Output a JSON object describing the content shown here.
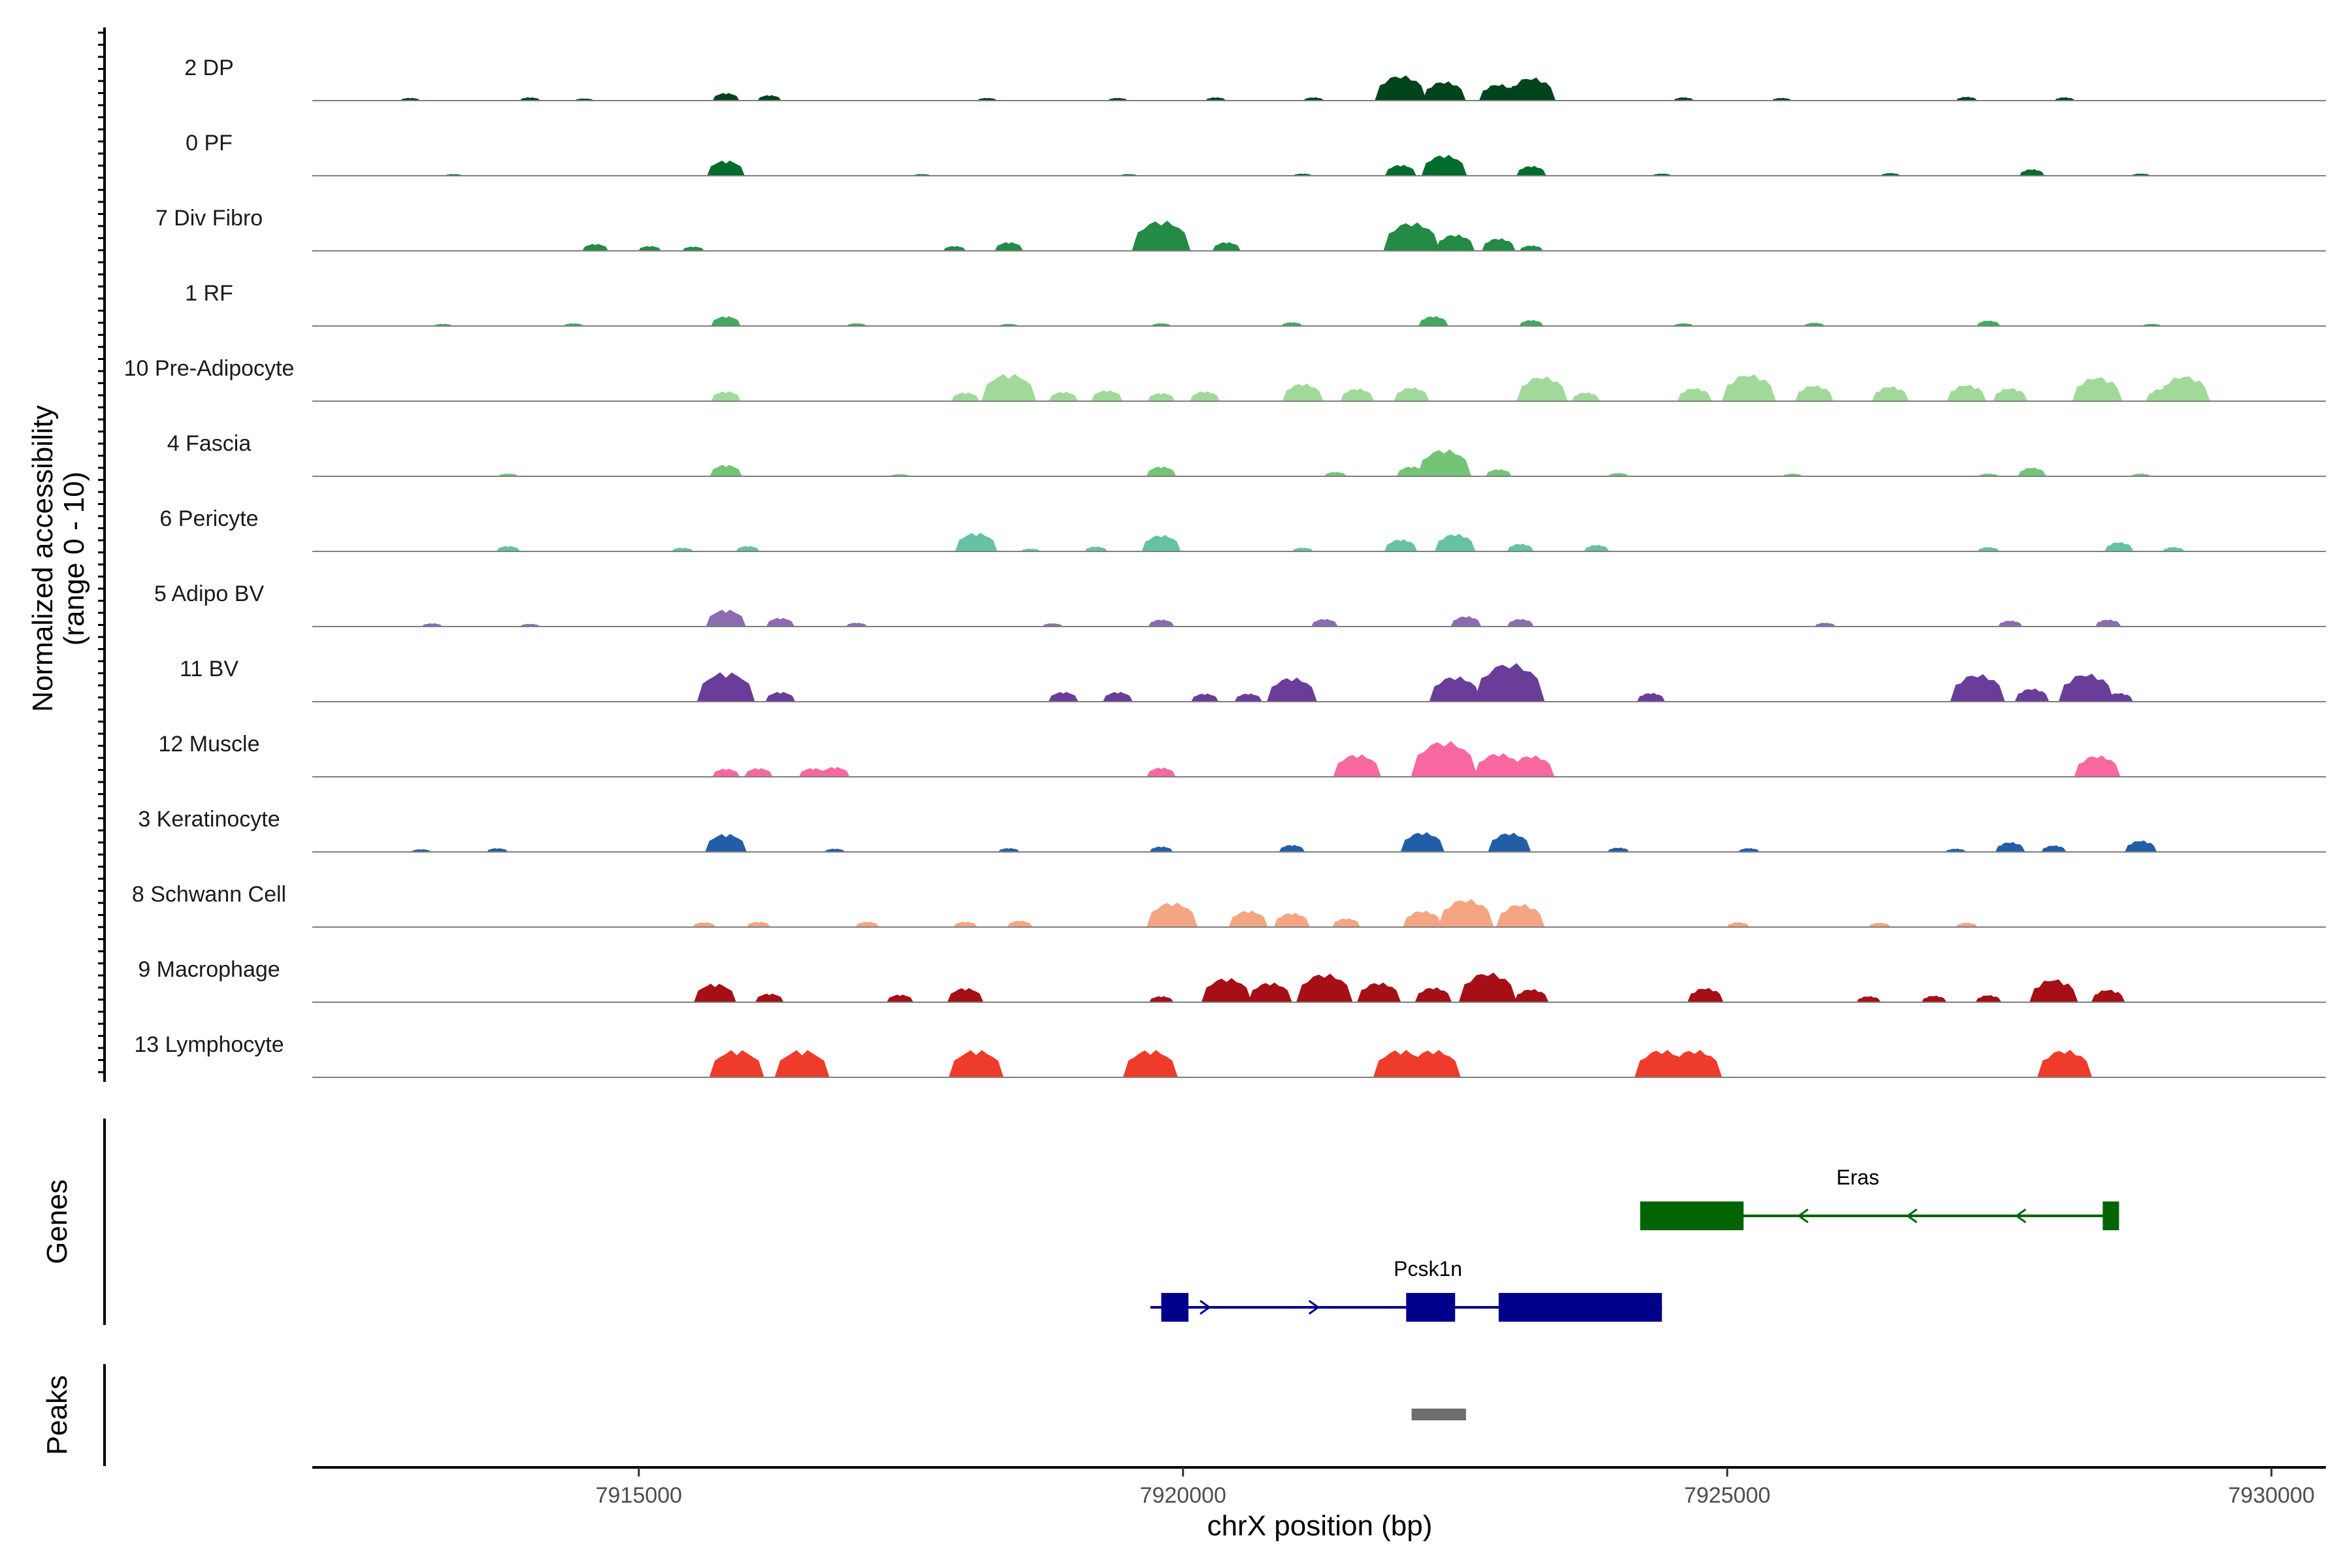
{
  "chart_data": {
    "type": "area",
    "title": "",
    "xlabel": "chrX position (bp)",
    "ylabel_line1": "Normalized accessibility",
    "ylabel_line2": "(range 0 - 10)",
    "y_range": [
      0,
      10
    ],
    "xlim": [
      7912000,
      7930500
    ],
    "x_ticks": [
      7915000,
      7920000,
      7925000,
      7930000
    ],
    "x_tick_labels": [
      "7915000",
      "7920000",
      "7925000",
      "7930000"
    ],
    "tracks": [
      {
        "name": "2 DP",
        "color": "#00441b",
        "peaks": [
          [
            7912900,
            0.5
          ],
          [
            7914000,
            0.6
          ],
          [
            7914500,
            0.4
          ],
          [
            7915800,
            1.4
          ],
          [
            7916200,
            1.0
          ],
          [
            7918200,
            0.5
          ],
          [
            7919400,
            0.5
          ],
          [
            7920300,
            0.6
          ],
          [
            7921200,
            0.6
          ],
          [
            7922000,
            4.6
          ],
          [
            7922400,
            3.5
          ],
          [
            7922900,
            3.0
          ],
          [
            7923200,
            4.2
          ],
          [
            7924600,
            0.6
          ],
          [
            7925500,
            0.5
          ],
          [
            7927200,
            0.7
          ],
          [
            7928100,
            0.6
          ]
        ]
      },
      {
        "name": "0 PF",
        "color": "#006d2c",
        "peaks": [
          [
            7913300,
            0.3
          ],
          [
            7915800,
            2.8
          ],
          [
            7917600,
            0.3
          ],
          [
            7919500,
            0.3
          ],
          [
            7921100,
            0.4
          ],
          [
            7922000,
            2.0
          ],
          [
            7922400,
            3.8
          ],
          [
            7923200,
            1.8
          ],
          [
            7924400,
            0.4
          ],
          [
            7926500,
            0.5
          ],
          [
            7927800,
            1.2
          ],
          [
            7928800,
            0.4
          ]
        ]
      },
      {
        "name": "7 Div Fibro",
        "color": "#238b45",
        "peaks": [
          [
            7914600,
            1.3
          ],
          [
            7915100,
            0.9
          ],
          [
            7915500,
            0.8
          ],
          [
            7917900,
            0.9
          ],
          [
            7918400,
            1.6
          ],
          [
            7919800,
            5.5
          ],
          [
            7920400,
            1.6
          ],
          [
            7922100,
            5.2
          ],
          [
            7922500,
            3.0
          ],
          [
            7922900,
            2.3
          ],
          [
            7923200,
            1.0
          ]
        ]
      },
      {
        "name": "1 RF",
        "color": "#41ab5d",
        "peaks": [
          [
            7913200,
            0.4
          ],
          [
            7914400,
            0.5
          ],
          [
            7915800,
            1.8
          ],
          [
            7917000,
            0.5
          ],
          [
            7918400,
            0.4
          ],
          [
            7919800,
            0.5
          ],
          [
            7921000,
            0.7
          ],
          [
            7922300,
            1.8
          ],
          [
            7923200,
            1.1
          ],
          [
            7924600,
            0.5
          ],
          [
            7925800,
            0.6
          ],
          [
            7927400,
            1.0
          ],
          [
            7928900,
            0.4
          ]
        ]
      },
      {
        "name": "10 Pre-Adipocyte",
        "color": "#a1d99b",
        "peaks": [
          [
            7915800,
            1.8
          ],
          [
            7918000,
            1.6
          ],
          [
            7918400,
            5.0
          ],
          [
            7918900,
            1.7
          ],
          [
            7919300,
            2.0
          ],
          [
            7919800,
            1.5
          ],
          [
            7920200,
            1.8
          ],
          [
            7921100,
            3.2
          ],
          [
            7921600,
            2.3
          ],
          [
            7922100,
            2.5
          ],
          [
            7923300,
            4.5
          ],
          [
            7923700,
            1.6
          ],
          [
            7924700,
            2.4
          ],
          [
            7925200,
            4.9
          ],
          [
            7925800,
            2.9
          ],
          [
            7926500,
            2.7
          ],
          [
            7927200,
            3.0
          ],
          [
            7927600,
            2.4
          ],
          [
            7928400,
            4.4
          ],
          [
            7929000,
            2.3
          ],
          [
            7929200,
            4.6
          ]
        ]
      },
      {
        "name": "4 Fascia",
        "color": "#74c476",
        "peaks": [
          [
            7913800,
            0.5
          ],
          [
            7915800,
            2.1
          ],
          [
            7917400,
            0.4
          ],
          [
            7919800,
            1.8
          ],
          [
            7921400,
            0.8
          ],
          [
            7922100,
            1.8
          ],
          [
            7922400,
            4.9
          ],
          [
            7922900,
            1.3
          ],
          [
            7924000,
            0.6
          ],
          [
            7925600,
            0.5
          ],
          [
            7927400,
            0.5
          ],
          [
            7927800,
            1.6
          ],
          [
            7928800,
            0.5
          ]
        ]
      },
      {
        "name": "6 Pericyte",
        "color": "#66c2a4",
        "peaks": [
          [
            7913800,
            1.0
          ],
          [
            7915400,
            0.7
          ],
          [
            7916000,
            1.0
          ],
          [
            7918100,
            3.4
          ],
          [
            7918600,
            0.5
          ],
          [
            7919200,
            0.9
          ],
          [
            7919800,
            3.0
          ],
          [
            7921100,
            0.7
          ],
          [
            7922000,
            2.2
          ],
          [
            7922500,
            3.2
          ],
          [
            7923100,
            1.4
          ],
          [
            7923800,
            1.2
          ],
          [
            7927400,
            0.8
          ],
          [
            7928600,
            1.7
          ],
          [
            7929100,
            0.8
          ]
        ]
      },
      {
        "name": "5 Adipo BV",
        "color": "#8c6bb1",
        "peaks": [
          [
            7913100,
            0.6
          ],
          [
            7914000,
            0.5
          ],
          [
            7915800,
            3.1
          ],
          [
            7916300,
            1.6
          ],
          [
            7917000,
            0.7
          ],
          [
            7918800,
            0.6
          ],
          [
            7919800,
            1.3
          ],
          [
            7921300,
            1.4
          ],
          [
            7922600,
            1.9
          ],
          [
            7923100,
            1.4
          ],
          [
            7925900,
            0.7
          ],
          [
            7927600,
            1.1
          ],
          [
            7928500,
            1.3
          ]
        ]
      },
      {
        "name": "11 BV",
        "color": "#6a3d9a",
        "peaks": [
          [
            7915800,
            5.4
          ],
          [
            7916300,
            1.8
          ],
          [
            7918900,
            1.8
          ],
          [
            7919400,
            1.8
          ],
          [
            7920200,
            1.5
          ],
          [
            7920600,
            1.5
          ],
          [
            7921000,
            4.4
          ],
          [
            7922500,
            4.6
          ],
          [
            7923000,
            7.0
          ],
          [
            7924300,
            1.6
          ],
          [
            7927300,
            5.0
          ],
          [
            7927800,
            2.4
          ],
          [
            7928300,
            5.1
          ],
          [
            7928600,
            1.6
          ]
        ]
      },
      {
        "name": "12 Muscle",
        "color": "#f768a1",
        "peaks": [
          [
            7915800,
            1.5
          ],
          [
            7916100,
            1.6
          ],
          [
            7916600,
            1.6
          ],
          [
            7916800,
            1.8
          ],
          [
            7919800,
            1.7
          ],
          [
            7921600,
            4.1
          ],
          [
            7922400,
            6.5
          ],
          [
            7922900,
            4.3
          ],
          [
            7923200,
            3.9
          ],
          [
            7928400,
            3.9
          ]
        ]
      },
      {
        "name": "3 Keratinocyte",
        "color": "#225ea8",
        "peaks": [
          [
            7913000,
            0.5
          ],
          [
            7913700,
            0.7
          ],
          [
            7915800,
            3.3
          ],
          [
            7916800,
            0.6
          ],
          [
            7918400,
            0.7
          ],
          [
            7919800,
            1.0
          ],
          [
            7921000,
            1.3
          ],
          [
            7922200,
            3.6
          ],
          [
            7923000,
            3.5
          ],
          [
            7924000,
            0.8
          ],
          [
            7925200,
            0.7
          ],
          [
            7927100,
            0.6
          ],
          [
            7927600,
            1.8
          ],
          [
            7928000,
            1.2
          ],
          [
            7928800,
            2.1
          ]
        ]
      },
      {
        "name": "8 Schwann Cell",
        "color": "#f4a582",
        "peaks": [
          [
            7915600,
            0.9
          ],
          [
            7916100,
            1.0
          ],
          [
            7917100,
            1.0
          ],
          [
            7918000,
            1.0
          ],
          [
            7918500,
            1.2
          ],
          [
            7919900,
            4.5
          ],
          [
            7920600,
            3.0
          ],
          [
            7921000,
            2.6
          ],
          [
            7921500,
            1.6
          ],
          [
            7922200,
            3.0
          ],
          [
            7922600,
            5.1
          ],
          [
            7923100,
            4.2
          ],
          [
            7925100,
            0.9
          ],
          [
            7926400,
            0.8
          ],
          [
            7927200,
            0.8
          ]
        ]
      },
      {
        "name": "9 Macrophage",
        "color": "#a50f15",
        "peaks": [
          [
            7915700,
            3.4
          ],
          [
            7916200,
            1.6
          ],
          [
            7917400,
            1.4
          ],
          [
            7918000,
            2.6
          ],
          [
            7919800,
            1.1
          ],
          [
            7920400,
            4.4
          ],
          [
            7920800,
            3.6
          ],
          [
            7921300,
            5.2
          ],
          [
            7921800,
            3.6
          ],
          [
            7922300,
            2.7
          ],
          [
            7922800,
            5.4
          ],
          [
            7923200,
            2.4
          ],
          [
            7924800,
            2.6
          ],
          [
            7926300,
            1.1
          ],
          [
            7926900,
            1.2
          ],
          [
            7927400,
            1.3
          ],
          [
            7928000,
            4.2
          ],
          [
            7928500,
            2.3
          ]
        ]
      },
      {
        "name": "13 Lymphocyte",
        "color": "#ef3b2c",
        "peaks": [
          [
            7915900,
            5.0
          ],
          [
            7916500,
            5.0
          ],
          [
            7918100,
            5.0
          ],
          [
            7919700,
            5.0
          ],
          [
            7922000,
            5.0
          ],
          [
            7922300,
            5.0
          ],
          [
            7924400,
            5.0
          ],
          [
            7924700,
            5.0
          ],
          [
            7928100,
            5.0
          ]
        ]
      }
    ],
    "genes_panel_title": "Genes",
    "genes": [
      {
        "name": "Eras",
        "strand": "-",
        "start": 7924200,
        "end": 7928600,
        "color": "#006400",
        "exons": [
          [
            7924200,
            7925150
          ],
          [
            7928450,
            7928600
          ]
        ]
      },
      {
        "name": "Pcsk1n",
        "strand": "+",
        "start": 7919700,
        "end": 7924400,
        "color": "#00008b",
        "exons": [
          [
            7919800,
            7920050
          ],
          [
            7922050,
            7922500
          ],
          [
            7922900,
            7924400
          ]
        ]
      }
    ],
    "peaks_panel_title": "Peaks",
    "peaks": [
      {
        "start": 7922100,
        "end": 7922600,
        "color": "#6e6e6e"
      }
    ]
  }
}
